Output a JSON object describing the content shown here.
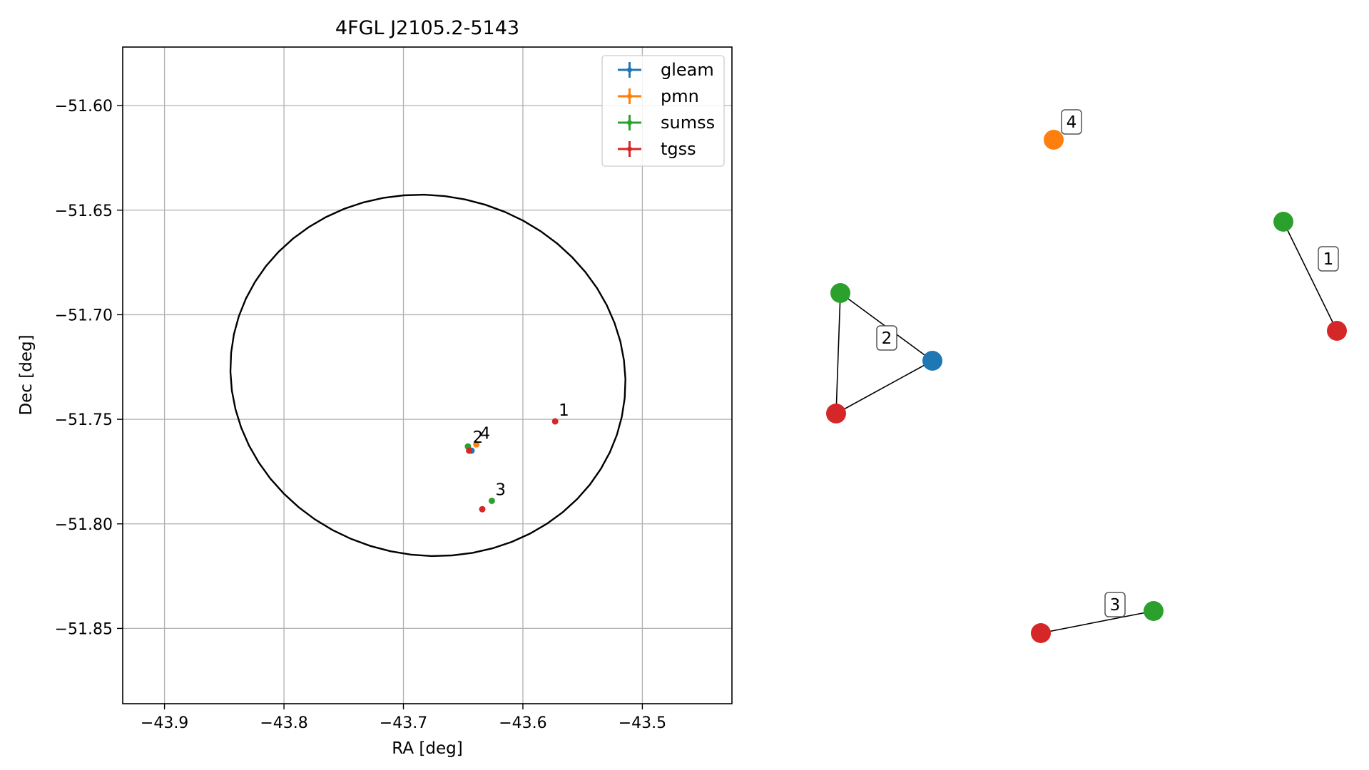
{
  "chart_data": [
    {
      "type": "scatter",
      "title": "4FGL J2105.2-5143",
      "xlabel": "RA [deg]",
      "ylabel": "Dec [deg]",
      "xlim": [
        -43.935,
        -43.425
      ],
      "ylim": [
        -51.886,
        -51.572
      ],
      "xticks": [
        -43.9,
        -43.8,
        -43.7,
        -43.6,
        -43.5
      ],
      "xtick_labels": [
        "−43.9",
        "−43.8",
        "−43.7",
        "−43.6",
        "−43.5"
      ],
      "yticks": [
        -51.6,
        -51.65,
        -51.7,
        -51.75,
        -51.8,
        -51.85
      ],
      "ytick_labels": [
        "−51.60",
        "−51.65",
        "−51.70",
        "−51.75",
        "−51.80",
        "−51.85"
      ],
      "grid": true,
      "legend_position": "top-right",
      "series": [
        {
          "name": "gleam",
          "color": "#1f77b4",
          "points": [
            {
              "x": -43.643,
              "y": -51.765
            }
          ]
        },
        {
          "name": "pmn",
          "color": "#ff7f0e",
          "points": [
            {
              "x": -43.639,
              "y": -51.762
            }
          ]
        },
        {
          "name": "sumss",
          "color": "#2ca02c",
          "points": [
            {
              "x": -43.646,
              "y": -51.763
            },
            {
              "x": -43.626,
              "y": -51.789
            }
          ]
        },
        {
          "name": "tgss",
          "color": "#d62728",
          "points": [
            {
              "x": -43.645,
              "y": -51.765
            },
            {
              "x": -43.573,
              "y": -51.751
            },
            {
              "x": -43.634,
              "y": -51.793
            }
          ]
        }
      ],
      "annotations": [
        {
          "text": "1",
          "x": -43.573,
          "y": -51.751
        },
        {
          "text": "2",
          "x": -43.645,
          "y": -51.764
        },
        {
          "text": "4",
          "x": -43.639,
          "y": -51.762
        },
        {
          "text": "3",
          "x": -43.626,
          "y": -51.789
        }
      ],
      "ellipse": {
        "center_ra": -43.6795,
        "center_dec": -51.729,
        "ra_halfwidth": 0.166,
        "dec_halfheight": 0.086,
        "angle_deg": 12,
        "color": "#000000"
      }
    },
    {
      "type": "network",
      "nodes": [
        {
          "id": "n1",
          "color": "#ff7f0e"
        },
        {
          "id": "n2",
          "color": "#2ca02c"
        },
        {
          "id": "n3",
          "color": "#d62728"
        },
        {
          "id": "n4",
          "color": "#2ca02c"
        },
        {
          "id": "n5",
          "color": "#1f77b4"
        },
        {
          "id": "n6",
          "color": "#d62728"
        },
        {
          "id": "n7",
          "color": "#d62728"
        },
        {
          "id": "n8",
          "color": "#2ca02c"
        }
      ],
      "edges": [
        {
          "from": "n2",
          "to": "n3"
        },
        {
          "from": "n4",
          "to": "n5"
        },
        {
          "from": "n4",
          "to": "n6"
        },
        {
          "from": "n5",
          "to": "n6"
        },
        {
          "from": "n7",
          "to": "n8"
        }
      ],
      "labels": [
        {
          "text": "4",
          "node": "n1"
        },
        {
          "text": "1",
          "node": "n2"
        },
        {
          "text": "2",
          "node": "n4"
        },
        {
          "text": "3",
          "node": "n7"
        }
      ]
    }
  ]
}
